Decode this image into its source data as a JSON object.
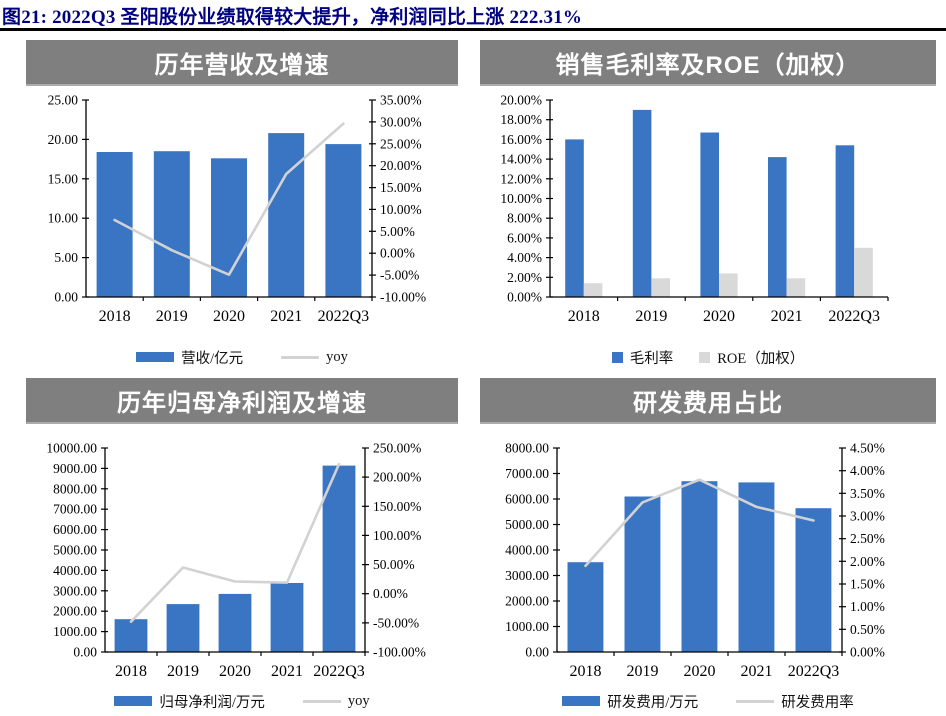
{
  "figure_title": "图21: 2022Q3 圣阳股份业绩取得较大提升，净利润同比上涨 222.31%",
  "colors": {
    "bar_blue": "#3A75C4",
    "bar_gray": "#D9D9D9",
    "line_gray": "#D2D2D2",
    "header_bg": "#7F7F7F",
    "header_text": "#FFFFFF",
    "caption_text": "#000082",
    "axis_black": "#000000"
  },
  "chart_data": [
    {
      "type": "bar+line",
      "title": "历年营收及增速",
      "categories": [
        "2018",
        "2019",
        "2020",
        "2021",
        "2022Q3"
      ],
      "bar_series": [
        {
          "name": "营收/亿元",
          "color_key": "bar_blue",
          "axis": "left",
          "values": [
            18.4,
            18.5,
            17.6,
            20.8,
            19.4
          ]
        }
      ],
      "line_series": [
        {
          "name": "yoy",
          "color_key": "line_gray",
          "axis": "right",
          "values": [
            7.6,
            0.7,
            -4.9,
            18.1,
            29.6
          ]
        }
      ],
      "left_axis": {
        "min": 0,
        "max": 25,
        "tick_labels": [
          "0.00",
          "5.00",
          "10.00",
          "15.00",
          "20.00",
          "25.00"
        ]
      },
      "right_axis": {
        "min": -10,
        "max": 35,
        "tick_labels": [
          "-10.00%",
          "-5.00%",
          "0.00%",
          "5.00%",
          "10.00%",
          "15.00%",
          "20.00%",
          "25.00%",
          "30.00%",
          "35.00%"
        ]
      },
      "legend": [
        {
          "swatch": "bar",
          "color_key": "bar_blue",
          "label": "营收/亿元"
        },
        {
          "swatch": "line",
          "color_key": "line_gray",
          "label": "yoy"
        }
      ]
    },
    {
      "type": "bar",
      "title": "销售毛利率及ROE（加权）",
      "categories": [
        "2018",
        "2019",
        "2020",
        "2021",
        "2022Q3"
      ],
      "bar_series": [
        {
          "name": "毛利率",
          "color_key": "bar_blue",
          "axis": "left",
          "values": [
            16.0,
            19.0,
            16.7,
            14.2,
            15.4
          ]
        },
        {
          "name": "ROE（加权）",
          "color_key": "bar_gray",
          "axis": "left",
          "values": [
            1.4,
            1.9,
            2.4,
            1.9,
            5.0
          ]
        }
      ],
      "line_series": [],
      "left_axis": {
        "min": 0,
        "max": 20,
        "tick_labels": [
          "0.00%",
          "2.00%",
          "4.00%",
          "6.00%",
          "8.00%",
          "10.00%",
          "12.00%",
          "14.00%",
          "16.00%",
          "18.00%",
          "20.00%"
        ]
      },
      "legend": [
        {
          "swatch": "square",
          "color_key": "bar_blue",
          "label": "毛利率"
        },
        {
          "swatch": "square",
          "color_key": "bar_gray",
          "label": "ROE（加权）"
        }
      ]
    },
    {
      "type": "bar+line",
      "title": "历年归母净利润及增速",
      "categories": [
        "2018",
        "2019",
        "2020",
        "2021",
        "2022Q3"
      ],
      "bar_series": [
        {
          "name": "归母净利润/万元",
          "color_key": "bar_blue",
          "axis": "left",
          "values": [
            1610,
            2350,
            2850,
            3380,
            9135
          ]
        }
      ],
      "line_series": [
        {
          "name": "yoy",
          "color_key": "line_gray",
          "axis": "right",
          "values": [
            -48,
            45,
            21,
            19,
            222.31
          ]
        }
      ],
      "left_axis": {
        "min": 0,
        "max": 10000,
        "tick_labels": [
          "0.00",
          "1000.00",
          "2000.00",
          "3000.00",
          "4000.00",
          "5000.00",
          "6000.00",
          "7000.00",
          "8000.00",
          "9000.00",
          "10000.00"
        ]
      },
      "right_axis": {
        "min": -100,
        "max": 250,
        "tick_labels": [
          "-100.00%",
          "-50.00%",
          "0.00%",
          "50.00%",
          "100.00%",
          "150.00%",
          "200.00%",
          "250.00%"
        ]
      },
      "legend": [
        {
          "swatch": "bar",
          "color_key": "bar_blue",
          "label": "归母净利润/万元"
        },
        {
          "swatch": "line",
          "color_key": "line_gray",
          "label": "yoy"
        }
      ]
    },
    {
      "type": "bar+line",
      "title": "研发费用占比",
      "categories": [
        "2018",
        "2019",
        "2020",
        "2021",
        "2022Q3"
      ],
      "bar_series": [
        {
          "name": "研发费用/万元",
          "color_key": "bar_blue",
          "axis": "left",
          "values": [
            3520,
            6100,
            6700,
            6650,
            5640
          ]
        }
      ],
      "line_series": [
        {
          "name": "研发费用率",
          "color_key": "line_gray",
          "axis": "right",
          "values": [
            1.9,
            3.3,
            3.8,
            3.2,
            2.9
          ]
        }
      ],
      "left_axis": {
        "min": 0,
        "max": 8000,
        "tick_labels": [
          "0.00",
          "1000.00",
          "2000.00",
          "3000.00",
          "4000.00",
          "5000.00",
          "6000.00",
          "7000.00",
          "8000.00"
        ]
      },
      "right_axis": {
        "min": 0,
        "max": 4.5,
        "tick_labels": [
          "0.00%",
          "0.50%",
          "1.00%",
          "1.50%",
          "2.00%",
          "2.50%",
          "3.00%",
          "3.50%",
          "4.00%",
          "4.50%"
        ]
      },
      "legend": [
        {
          "swatch": "bar",
          "color_key": "bar_blue",
          "label": "研发费用/万元"
        },
        {
          "swatch": "line",
          "color_key": "line_gray",
          "label": "研发费用率"
        }
      ]
    }
  ]
}
